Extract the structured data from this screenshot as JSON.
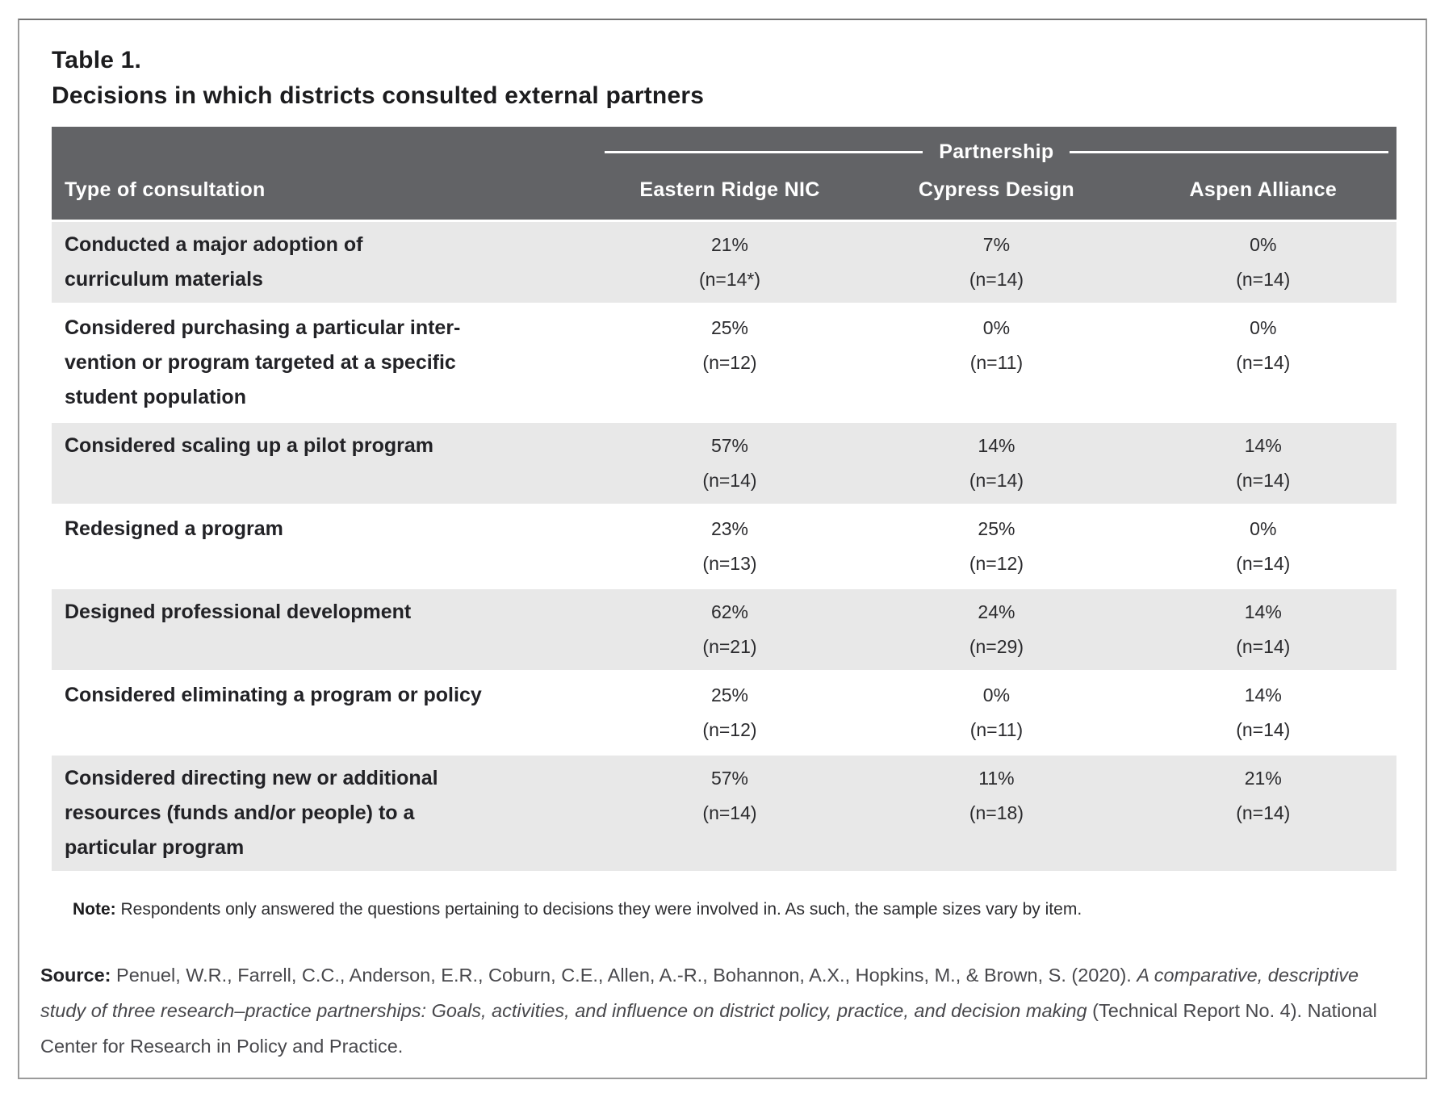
{
  "title": {
    "label": "Table 1.",
    "caption": "Decisions in which districts consulted external partners"
  },
  "table": {
    "group_header": "Partnership",
    "columns": [
      "Type of consultation",
      "Eastern Ridge NIC",
      "Cypress Design",
      "Aspen Alliance"
    ],
    "rows": [
      {
        "label": "Conducted a major adoption of\ncurriculum materials",
        "values": [
          {
            "pct": "21%",
            "n": "(n=14*)"
          },
          {
            "pct": "7%",
            "n": "(n=14)"
          },
          {
            "pct": "0%",
            "n": "(n=14)"
          }
        ]
      },
      {
        "label": "Considered purchasing a particular inter-\nvention or program targeted at a specific\nstudent population",
        "values": [
          {
            "pct": "25%",
            "n": "(n=12)"
          },
          {
            "pct": "0%",
            "n": "(n=11)"
          },
          {
            "pct": "0%",
            "n": "(n=14)"
          }
        ]
      },
      {
        "label": "Considered scaling up a pilot program",
        "values": [
          {
            "pct": "57%",
            "n": "(n=14)"
          },
          {
            "pct": "14%",
            "n": "(n=14)"
          },
          {
            "pct": "14%",
            "n": "(n=14)"
          }
        ]
      },
      {
        "label": "Redesigned a program",
        "values": [
          {
            "pct": "23%",
            "n": "(n=13)"
          },
          {
            "pct": "25%",
            "n": "(n=12)"
          },
          {
            "pct": "0%",
            "n": "(n=14)"
          }
        ]
      },
      {
        "label": "Designed professional development",
        "values": [
          {
            "pct": "62%",
            "n": "(n=21)"
          },
          {
            "pct": "24%",
            "n": "(n=29)"
          },
          {
            "pct": "14%",
            "n": "(n=14)"
          }
        ]
      },
      {
        "label": "Considered eliminating a program or policy",
        "values": [
          {
            "pct": "25%",
            "n": "(n=12)"
          },
          {
            "pct": "0%",
            "n": "(n=11)"
          },
          {
            "pct": "14%",
            "n": "(n=14)"
          }
        ]
      },
      {
        "label": "Considered directing new or additional\nresources (funds and/or people) to a\nparticular program",
        "values": [
          {
            "pct": "57%",
            "n": "(n=14)"
          },
          {
            "pct": "11%",
            "n": "(n=18)"
          },
          {
            "pct": "21%",
            "n": "(n=14)"
          }
        ]
      }
    ]
  },
  "note": {
    "label": "Note:",
    "text": " Respondents only answered the questions pertaining to decisions they were involved in. As such, the sample sizes vary by item."
  },
  "source": {
    "label": "Source:",
    "authors": " Penuel, W.R., Farrell, C.C., Anderson, E.R., Coburn, C.E., Allen, A.-R., Bohannon, A.X., Hopkins, M., & Brown, S. (2020). ",
    "title_italic": "A comparative, descriptive study of three research–practice partnerships: Goals, activities, and influence on district policy, practice, and decision making ",
    "post": "(Technical Report No. 4). National Center for Research in Policy and Practice."
  },
  "chart_data": {
    "type": "table",
    "title": "Decisions in which districts consulted external partners",
    "categories": [
      "Conducted a major adoption of curriculum materials",
      "Considered purchasing a particular intervention or program targeted at a specific student population",
      "Considered scaling up a pilot program",
      "Redesigned a program",
      "Designed professional development",
      "Considered eliminating a program or policy",
      "Considered directing new or additional resources (funds and/or people) to a particular program"
    ],
    "series": [
      {
        "name": "Eastern Ridge NIC",
        "values": [
          21,
          25,
          57,
          23,
          62,
          25,
          57
        ],
        "n": [
          14,
          12,
          14,
          13,
          21,
          12,
          14
        ]
      },
      {
        "name": "Cypress Design",
        "values": [
          7,
          0,
          14,
          25,
          24,
          0,
          11
        ],
        "n": [
          14,
          11,
          14,
          12,
          29,
          11,
          18
        ]
      },
      {
        "name": "Aspen Alliance",
        "values": [
          0,
          0,
          14,
          0,
          14,
          14,
          21
        ],
        "n": [
          14,
          14,
          14,
          14,
          14,
          14,
          14
        ]
      }
    ],
    "value_unit": "%"
  },
  "colors": {
    "header_bg": "#626366",
    "row_stripe": "#e8e8e8"
  }
}
